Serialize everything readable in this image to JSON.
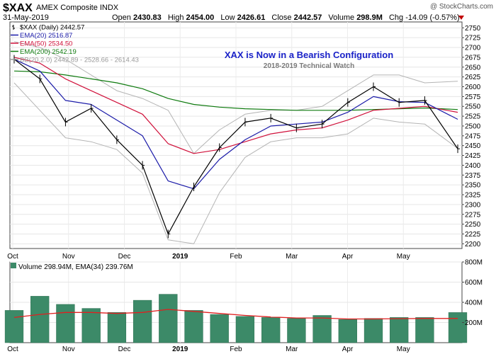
{
  "header": {
    "symbol": "$XAX",
    "name": "AMEX Composite INDX",
    "date": "31-May-2019",
    "open_label": "Open",
    "open": "2430.83",
    "high_label": "High",
    "high": "2454.00",
    "low_label": "Low",
    "low": "2426.61",
    "close_label": "Close",
    "close": "2442.57",
    "volume_label": "Volume",
    "volume": "298.9M",
    "chg_label": "Chg",
    "chg": "-14.09 (-0.57%)",
    "logo": "@ StockCharts.com"
  },
  "annotation": {
    "title": "XAX is Now in a Bearish Configuration",
    "subtitle": "2018-2019 Technical Watch"
  },
  "legend": [
    {
      "text": "$XAX (Daily) 2442.57",
      "color": "#000000",
      "icon": "bar-icon"
    },
    {
      "text": "EMA(20) 2516.87",
      "color": "#1a1aa8",
      "icon": "line-icon"
    },
    {
      "text": "EMA(50) 2534.50",
      "color": "#d0103a",
      "icon": "line-icon"
    },
    {
      "text": "EMA(200) 2542.19",
      "color": "#0e7a0e",
      "icon": "line-icon"
    },
    {
      "text": "BB(20,2.0) 2442.89 - 2528.66 - 2614.43",
      "color": "#9a9a9a",
      "icon": "line-icon"
    }
  ],
  "volume_legend": "Volume 298.94M, EMA(34) 239.76M",
  "colors": {
    "ema20": "#1a1aa8",
    "ema50": "#d0103a",
    "ema200": "#0e7a0e",
    "bb": "#b4b4b4",
    "volume": "#3c8a68",
    "volume_ema": "#e02020",
    "chg_marker": "#c00000"
  },
  "chart_data": [
    {
      "type": "line",
      "title": "XAX is Now in a Bearish Configuration",
      "x_labels": [
        "Oct",
        "Nov",
        "Dec",
        "2019",
        "Feb",
        "Mar",
        "Apr",
        "May"
      ],
      "y_ticks": [
        2200,
        2225,
        2250,
        2275,
        2300,
        2325,
        2350,
        2375,
        2400,
        2425,
        2450,
        2475,
        2500,
        2525,
        2550,
        2575,
        2600,
        2625,
        2650,
        2675,
        2700,
        2725,
        2750
      ],
      "ylim": [
        2188,
        2765
      ],
      "x": [
        "2018-10-01",
        "2018-10-15",
        "2018-10-29",
        "2018-11-12",
        "2018-11-26",
        "2018-12-10",
        "2018-12-24",
        "2019-01-07",
        "2019-01-21",
        "2019-02-04",
        "2019-02-18",
        "2019-03-04",
        "2019-03-18",
        "2019-04-01",
        "2019-04-15",
        "2019-04-29",
        "2019-05-13",
        "2019-05-31"
      ],
      "series": [
        {
          "name": "$XAX (Daily) 2442.57",
          "values": [
            2670,
            2620,
            2510,
            2545,
            2465,
            2400,
            2225,
            2345,
            2445,
            2510,
            2520,
            2495,
            2505,
            2560,
            2600,
            2560,
            2565,
            2442
          ]
        },
        {
          "name": "EMA(20) 2516.87",
          "values": [
            2670,
            2640,
            2565,
            2555,
            2515,
            2475,
            2360,
            2340,
            2415,
            2465,
            2500,
            2505,
            2510,
            2535,
            2575,
            2562,
            2560,
            2517
          ]
        },
        {
          "name": "EMA(50) 2534.50",
          "values": [
            2675,
            2660,
            2620,
            2590,
            2560,
            2530,
            2455,
            2430,
            2440,
            2460,
            2480,
            2490,
            2495,
            2515,
            2540,
            2545,
            2550,
            2535
          ]
        },
        {
          "name": "EMA(200) 2542.19",
          "values": [
            2640,
            2638,
            2630,
            2620,
            2610,
            2595,
            2570,
            2555,
            2548,
            2544,
            2542,
            2540,
            2540,
            2540,
            2542,
            2544,
            2546,
            2542
          ]
        },
        {
          "name": "BB(20,2.0) upper",
          "values": [
            2715,
            2700,
            2670,
            2630,
            2590,
            2570,
            2540,
            2430,
            2490,
            2530,
            2540,
            2540,
            2550,
            2590,
            2630,
            2630,
            2610,
            2614
          ]
        },
        {
          "name": "BB(20,2.0) lower",
          "values": [
            2610,
            2540,
            2470,
            2460,
            2440,
            2380,
            2210,
            2200,
            2330,
            2420,
            2460,
            2470,
            2470,
            2480,
            2520,
            2510,
            2505,
            2443
          ]
        }
      ]
    },
    {
      "type": "bar",
      "title": "Volume 298.94M, EMA(34) 239.76M",
      "y_ticks_labels": [
        "200M",
        "400M",
        "600M",
        "800M"
      ],
      "y_ticks": [
        200,
        400,
        600,
        800
      ],
      "ylim": [
        0,
        800
      ],
      "x": [
        "2018-10-01",
        "2018-10-15",
        "2018-10-29",
        "2018-11-12",
        "2018-11-26",
        "2018-12-10",
        "2018-12-24",
        "2019-01-07",
        "2019-01-21",
        "2019-02-04",
        "2019-02-18",
        "2019-03-04",
        "2019-03-18",
        "2019-04-01",
        "2019-04-15",
        "2019-04-29",
        "2019-05-13",
        "2019-05-31"
      ],
      "series": [
        {
          "name": "Volume",
          "values": [
            320,
            460,
            380,
            340,
            300,
            420,
            480,
            320,
            280,
            260,
            250,
            240,
            270,
            230,
            240,
            250,
            250,
            299
          ]
        },
        {
          "name": "EMA(34)",
          "values": [
            250,
            280,
            300,
            300,
            290,
            300,
            330,
            310,
            290,
            270,
            255,
            245,
            245,
            235,
            235,
            238,
            240,
            240
          ]
        }
      ]
    }
  ]
}
